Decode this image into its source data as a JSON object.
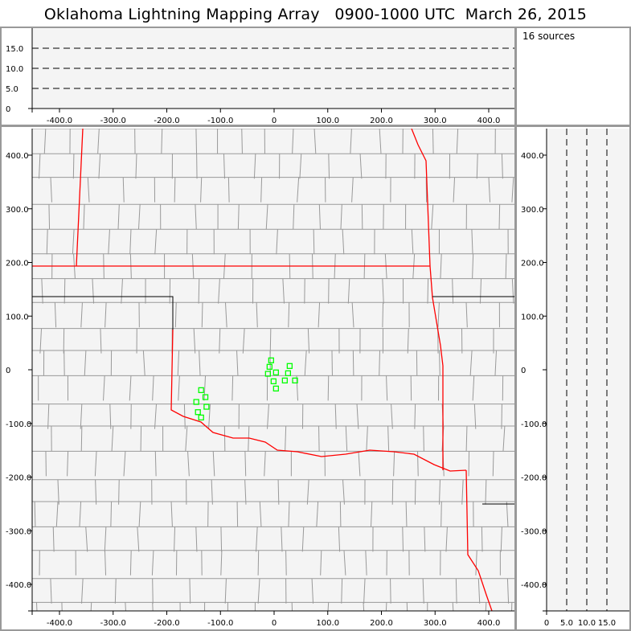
{
  "title": "Oklahoma Lightning Mapping Array   0900-1000 UTC  March 26, 2015",
  "source_count_label": "16 sources",
  "colors": {
    "source": "#00ff00",
    "state_border": "#ff0000",
    "county": "#999999",
    "plot_bg": "#f4f4f4"
  },
  "chart_data": [
    {
      "type": "scatter",
      "panel": "altitude-vs-east-west",
      "xlabel": "",
      "ylabel": "",
      "xlim": [
        -450,
        450
      ],
      "ylim": [
        0,
        20
      ],
      "xticks": [
        "-400.0",
        "-300.0",
        "-200.0",
        "-100.0",
        "0",
        "100.0",
        "200.0",
        "300.0",
        "400.0"
      ],
      "yticks": [
        "0",
        "5.0",
        "10.0",
        "15.0"
      ],
      "grid": "dashed horizontal at 5, 10, 15"
    },
    {
      "type": "scatter",
      "panel": "plan-view-map",
      "xlabel": "",
      "ylabel": "",
      "xlim": [
        -450,
        450
      ],
      "ylim": [
        -450,
        450
      ],
      "xticks": [
        "-400.0",
        "-300.0",
        "-200.0",
        "-100.0",
        "0",
        "100.0",
        "200.0",
        "300.0",
        "400.0"
      ],
      "yticks": [
        "-400.0",
        "-300.0",
        "-200.0",
        "-100.0",
        "0",
        "100.0",
        "200.0",
        "300.0",
        "400.0"
      ],
      "grid": "off",
      "points": [
        {
          "x": -5.5,
          "y": 17.5
        },
        {
          "x": -8.5,
          "y": 5.5
        },
        {
          "x": -11.5,
          "y": -7.5
        },
        {
          "x": 3.5,
          "y": -5
        },
        {
          "x": 29,
          "y": 7
        },
        {
          "x": 26,
          "y": -6.5
        },
        {
          "x": -1,
          "y": -21.5
        },
        {
          "x": 20,
          "y": -20
        },
        {
          "x": 39,
          "y": -20
        },
        {
          "x": 3.5,
          "y": -35
        },
        {
          "x": -136,
          "y": -38
        },
        {
          "x": -128,
          "y": -51
        },
        {
          "x": -145,
          "y": -60
        },
        {
          "x": -126,
          "y": -69
        },
        {
          "x": -142,
          "y": -79
        },
        {
          "x": -136,
          "y": -89
        }
      ]
    },
    {
      "type": "scatter",
      "panel": "north-south-vs-altitude",
      "xlabel": "",
      "ylabel": "",
      "xlim": [
        0,
        20
      ],
      "ylim": [
        -450,
        450
      ],
      "xticks": [
        "0",
        "5.0",
        "10.0",
        "15.0"
      ],
      "grid": "dashed vertical at 5, 10, 15"
    }
  ]
}
